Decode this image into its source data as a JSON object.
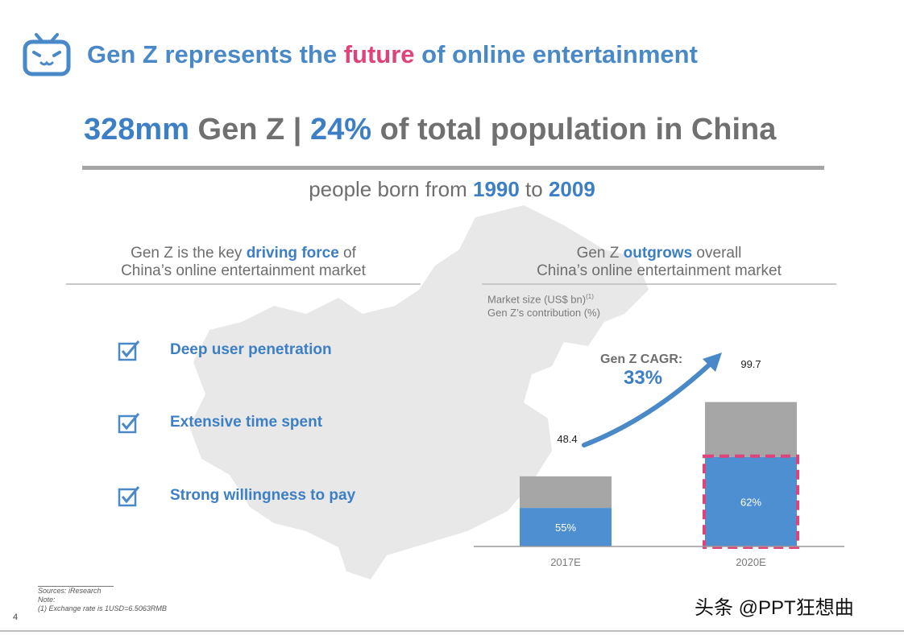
{
  "header": {
    "title_pre": "Gen Z represents the ",
    "title_highlight": "future",
    "title_post": " of online entertainment"
  },
  "headline": {
    "part1": "328mm",
    "part2": " Gen Z | ",
    "part3": "24%",
    "part4": " of total population in China"
  },
  "subline": {
    "pre": "people born from ",
    "year1": "1990",
    "mid": " to ",
    "year2": "2009"
  },
  "left_column": {
    "heading_pre": "Gen Z is the key ",
    "heading_highlight": "driving force",
    "heading_post": " of",
    "heading_line2": "China’s online entertainment market",
    "bullets": [
      "Deep user penetration",
      "Extensive time spent",
      "Strong willingness to pay"
    ]
  },
  "right_column": {
    "heading_pre": "Gen Z ",
    "heading_highlight": "outgrows",
    "heading_post": " overall",
    "heading_line2": "China’s online entertainment market",
    "legend_line1": "Market size (US$ bn)",
    "legend_line1_sup": "(1)",
    "legend_line2": "Gen Z’s contribution (%)",
    "cagr_label": "Gen Z CAGR:",
    "cagr_value": "33%"
  },
  "chart_data": {
    "type": "bar",
    "stacked": true,
    "categories": [
      "2017E",
      "2020E"
    ],
    "totals": [
      48.4,
      99.7
    ],
    "total_labels": [
      "48.4",
      "99.7"
    ],
    "genz_share_labels": [
      "55%",
      "62%"
    ],
    "series": [
      {
        "values": [
          26.6,
          61.8
        ],
        "color": "#4d8fd1"
      },
      {
        "values": [
          21.8,
          37.9
        ],
        "color": "#a6a6a6"
      }
    ],
    "highlight_category": "2020E",
    "highlight_color": "#e0437a",
    "ylim": [
      0,
      100
    ]
  },
  "footer": {
    "sources": "Sources: iResearch",
    "note": "Note:",
    "note_item": "(1)    Exchange rate is 1USD=6.5063RMB",
    "page_number": "4",
    "watermark": "头条 @PPT狂想曲"
  },
  "colors": {
    "title_blue": "#4a89c8",
    "accent_pink": "#e0437a",
    "text_gray": "#6e6e6e",
    "bar_blue": "#4d8fd1",
    "bar_gray": "#a6a6a6"
  },
  "icons": {
    "logo": "tv-face-icon",
    "bullet": "checkbox-checked-icon",
    "arrow": "growth-arrow-icon"
  }
}
